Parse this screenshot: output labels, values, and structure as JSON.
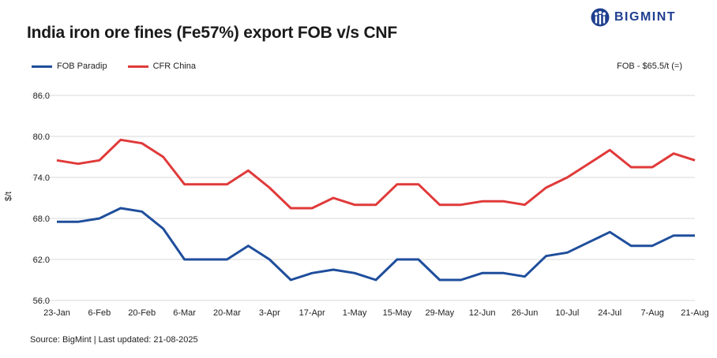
{
  "header": {
    "title": "India iron ore fines (Fe57%) export FOB v/s CNF",
    "logo_text": "BIGMINT"
  },
  "note": "FOB - $65.5/t (=)",
  "footer": {
    "source": "Source: BigMint | Last updated: 21-08-2025"
  },
  "colors": {
    "fob": "#1f4e9c",
    "cfr": "#e03a3a",
    "grid": "#d9d9d9",
    "brand": "#1f3f8f"
  },
  "chart_data": {
    "type": "line",
    "title": "India iron ore fines (Fe57%) export FOB v/s CNF",
    "xlabel": "",
    "ylabel": "$/t",
    "ylim": [
      56.0,
      86.0
    ],
    "yticks": [
      "86.0",
      "80.0",
      "74.0",
      "68.0",
      "62.0",
      "56.0"
    ],
    "x_tick_labels": [
      "23-Jan",
      "6-Feb",
      "20-Feb",
      "6-Mar",
      "20-Mar",
      "3-Apr",
      "17-Apr",
      "1-May",
      "15-May",
      "29-May",
      "12-Jun",
      "26-Jun",
      "10-Jul",
      "24-Jul",
      "7-Aug",
      "21-Aug"
    ],
    "x": [
      "23-Jan",
      "30-Jan",
      "6-Feb",
      "13-Feb",
      "20-Feb",
      "27-Feb",
      "6-Mar",
      "13-Mar",
      "20-Mar",
      "27-Mar",
      "3-Apr",
      "10-Apr",
      "17-Apr",
      "24-Apr",
      "1-May",
      "8-May",
      "15-May",
      "22-May",
      "29-May",
      "5-Jun",
      "12-Jun",
      "19-Jun",
      "26-Jun",
      "3-Jul",
      "10-Jul",
      "17-Jul",
      "24-Jul",
      "31-Jul",
      "7-Aug",
      "14-Aug",
      "21-Aug"
    ],
    "grid": true,
    "legend": "top-left",
    "series": [
      {
        "name": "FOB Paradip",
        "values": [
          67.5,
          67.5,
          68.0,
          69.5,
          69.0,
          66.5,
          62.0,
          62.0,
          62.0,
          64.0,
          62.0,
          59.0,
          60.0,
          60.5,
          60.0,
          59.0,
          62.0,
          62.0,
          59.0,
          59.0,
          60.0,
          60.0,
          59.5,
          62.5,
          63.0,
          64.5,
          66.0,
          64.0,
          64.0,
          65.5,
          65.5
        ]
      },
      {
        "name": "CFR China",
        "values": [
          76.5,
          76.0,
          76.5,
          79.5,
          79.0,
          77.0,
          73.0,
          73.0,
          73.0,
          75.0,
          72.5,
          69.5,
          69.5,
          71.0,
          70.0,
          70.0,
          73.0,
          73.0,
          70.0,
          70.0,
          70.5,
          70.5,
          70.0,
          72.5,
          74.0,
          76.0,
          78.0,
          75.5,
          75.5,
          77.5,
          76.5
        ]
      }
    ]
  }
}
